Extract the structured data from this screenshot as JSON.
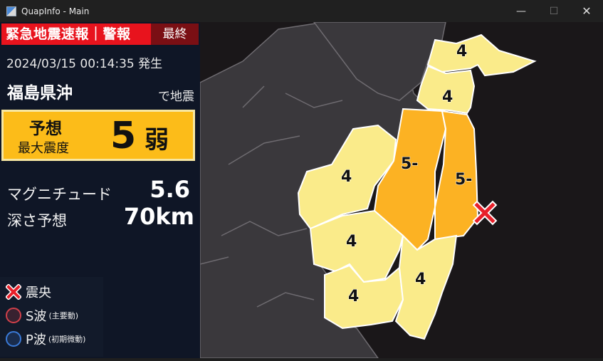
{
  "window": {
    "title": "QuapInfo - Main",
    "min_glyph": "—",
    "max_glyph": "☐",
    "close_glyph": "✕"
  },
  "alert": {
    "title": "緊急地震速報｜警報",
    "status": "最終",
    "origin_time": "2024/03/15 00:14:35 発生",
    "region": "福島県沖",
    "region_suffix": "で地震",
    "intensity_label1": "予想",
    "intensity_label2": "最大震度",
    "intensity_value": "5",
    "intensity_suffix": "弱",
    "magnitude_label": "マグニチュード",
    "magnitude_value": "5.6",
    "depth_label": "深さ予想",
    "depth_value": "70km"
  },
  "legend": {
    "epicenter": "震央",
    "s_wave": "S波",
    "s_wave_note": "(主要動)",
    "p_wave": "P波",
    "p_wave_note": "(初期微動)"
  },
  "map": {
    "area_labels": [
      "4",
      "4",
      "4",
      "5-",
      "5-",
      "4",
      "4",
      "4"
    ],
    "colors": {
      "shindo4": "#faeb8a",
      "shindo5weak": "#fcb223",
      "land": "#3a383c",
      "sea": "#1a1719",
      "epicenter": "#e8202a"
    }
  }
}
